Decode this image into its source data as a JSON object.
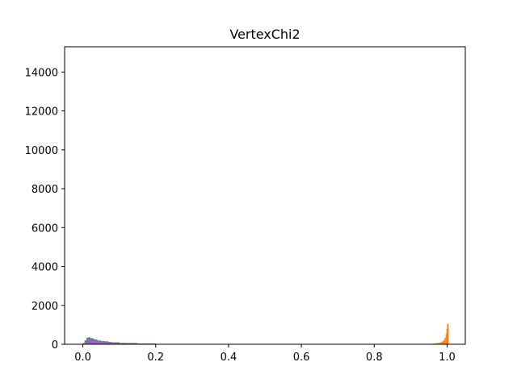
{
  "chart_data": {
    "type": "bar",
    "title": "VertexChi2",
    "xlabel": "",
    "ylabel": "",
    "xlim": [
      -0.05,
      1.05
    ],
    "ylim": [
      0,
      15300
    ],
    "xticks": [
      0.0,
      0.2,
      0.4,
      0.6,
      0.8,
      1.0
    ],
    "xtick_labels": [
      "0.0",
      "0.2",
      "0.4",
      "0.6",
      "0.8",
      "1.0"
    ],
    "yticks": [
      0,
      2000,
      4000,
      6000,
      8000,
      10000,
      12000,
      14000
    ],
    "ytick_labels": [
      "0",
      "2000",
      "4000",
      "6000",
      "8000",
      "10000",
      "12000",
      "14000"
    ],
    "grid": false,
    "legend": "none",
    "series": [
      {
        "color": "#1f77b4",
        "x": [
          0.0,
          0.005,
          0.01,
          0.015,
          0.02,
          0.025,
          0.03,
          0.035,
          0.04,
          0.05,
          0.06,
          0.07,
          0.08,
          0.1,
          0.12,
          0.15,
          0.2
        ],
        "values": [
          60,
          200,
          330,
          360,
          320,
          280,
          250,
          220,
          190,
          160,
          130,
          110,
          90,
          70,
          50,
          30,
          15
        ]
      },
      {
        "color": "#ff7f0e",
        "x": [
          0.94,
          0.95,
          0.96,
          0.97,
          0.98,
          0.985,
          0.99,
          0.993,
          0.996,
          0.998,
          1.0
        ],
        "values": [
          10,
          20,
          35,
          60,
          100,
          150,
          220,
          330,
          520,
          800,
          1050
        ]
      },
      {
        "color": "#2ca02c",
        "x": [
          0.0,
          0.005,
          0.01,
          0.015,
          0.02,
          0.03,
          0.04,
          0.05,
          0.07,
          0.1,
          0.15,
          0.2,
          0.25
        ],
        "values": [
          50,
          180,
          300,
          340,
          300,
          240,
          190,
          150,
          100,
          60,
          35,
          20,
          10
        ]
      },
      {
        "color": "#d62728",
        "x": [
          0.0,
          0.01,
          0.02,
          0.03,
          0.04,
          0.05,
          0.07,
          0.1,
          0.15,
          0.2
        ],
        "values": [
          40,
          150,
          200,
          170,
          140,
          110,
          80,
          50,
          25,
          10
        ]
      },
      {
        "color": "#9467bd",
        "x": [
          0.0,
          0.005,
          0.01,
          0.015,
          0.02,
          0.025,
          0.03,
          0.04,
          0.05,
          0.06,
          0.08,
          0.1,
          0.12,
          0.15
        ],
        "values": [
          40,
          140,
          260,
          290,
          270,
          240,
          210,
          170,
          140,
          115,
          80,
          55,
          35,
          20
        ]
      }
    ]
  }
}
